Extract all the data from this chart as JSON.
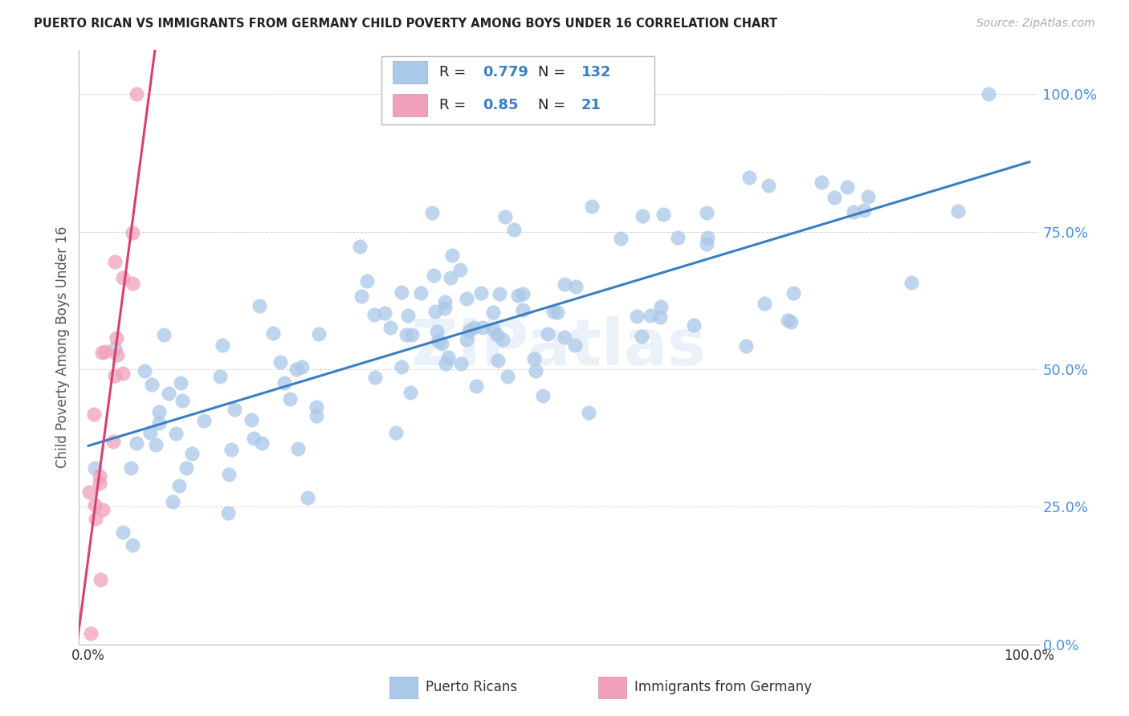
{
  "title": "PUERTO RICAN VS IMMIGRANTS FROM GERMANY CHILD POVERTY AMONG BOYS UNDER 16 CORRELATION CHART",
  "source": "Source: ZipAtlas.com",
  "ylabel": "Child Poverty Among Boys Under 16",
  "blue_R": 0.779,
  "blue_N": 132,
  "pink_R": 0.85,
  "pink_N": 21,
  "blue_color": "#aac8e8",
  "pink_color": "#f0a0b8",
  "blue_line_color": "#3a7fc1",
  "pink_line_color": "#d84070",
  "tick_color": "#4a90d9",
  "watermark": "ZIPatlas",
  "legend_blue_label": "Puerto Ricans",
  "legend_pink_label": "Immigrants from Germany",
  "blue_seed": 12,
  "pink_seed": 7
}
